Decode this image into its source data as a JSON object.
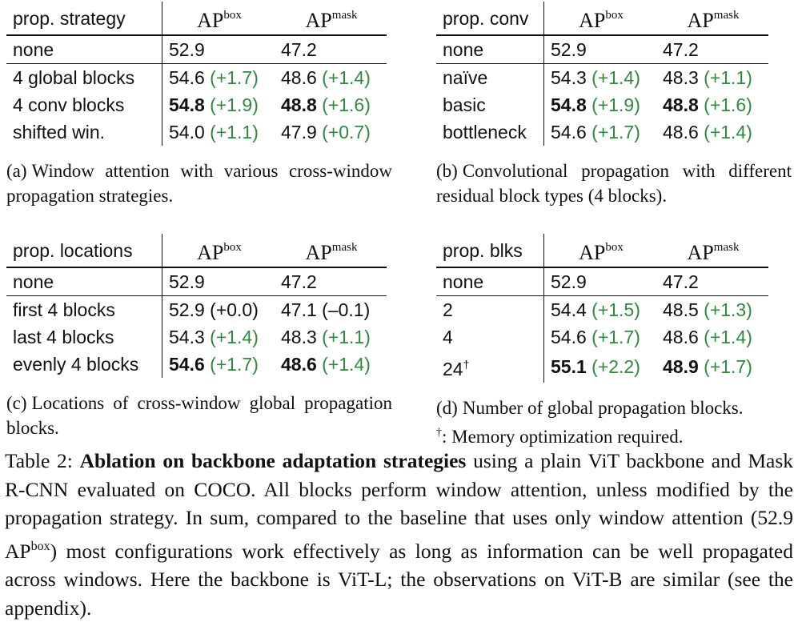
{
  "panels": {
    "a": {
      "header": {
        "label": "prop. strategy",
        "m1": "AP",
        "m1_sup": "box",
        "m2": "AP",
        "m2_sup": "mask"
      },
      "rows": [
        {
          "label": "none",
          "box": "52.9",
          "box_delta": "",
          "mask": "47.2",
          "mask_delta": ""
        },
        {
          "label": "4 global blocks",
          "box": "54.6",
          "box_delta": "(+1.7)",
          "mask": "48.6",
          "mask_delta": "(+1.4)"
        },
        {
          "label": "4 conv blocks",
          "box": "54.8",
          "box_delta": "(+1.9)",
          "mask": "48.8",
          "mask_delta": "(+1.6)"
        },
        {
          "label": "shifted win.",
          "box": "54.0",
          "box_delta": "(+1.1)",
          "mask": "47.9",
          "mask_delta": "(+0.7)"
        }
      ],
      "caption_tag": "(a)",
      "caption": "Window attention with various cross-window propagation strategies."
    },
    "b": {
      "header": {
        "label": "prop. conv",
        "m1": "AP",
        "m1_sup": "box",
        "m2": "AP",
        "m2_sup": "mask"
      },
      "rows": [
        {
          "label": "none",
          "box": "52.9",
          "box_delta": "",
          "mask": "47.2",
          "mask_delta": ""
        },
        {
          "label": "naïve",
          "box": "54.3",
          "box_delta": "(+1.4)",
          "mask": "48.3",
          "mask_delta": "(+1.1)"
        },
        {
          "label": "basic",
          "box": "54.8",
          "box_delta": "(+1.9)",
          "mask": "48.8",
          "mask_delta": "(+1.6)"
        },
        {
          "label": "bottleneck",
          "box": "54.6",
          "box_delta": "(+1.7)",
          "mask": "48.6",
          "mask_delta": "(+1.4)"
        }
      ],
      "caption_tag": "(b)",
      "caption": "Convolutional propagation with different residual block types (4 blocks)."
    },
    "c": {
      "header": {
        "label": "prop. locations",
        "m1": "AP",
        "m1_sup": "box",
        "m2": "AP",
        "m2_sup": "mask"
      },
      "rows": [
        {
          "label": "none",
          "box": "52.9",
          "box_delta": "",
          "mask": "47.2",
          "mask_delta": ""
        },
        {
          "label": "first 4 blocks",
          "box": "52.9",
          "box_delta": "(+0.0)",
          "mask": "47.1",
          "mask_delta": "(–0.1)"
        },
        {
          "label": "last 4 blocks",
          "box": "54.3",
          "box_delta": "(+1.4)",
          "mask": "48.3",
          "mask_delta": "(+1.1)"
        },
        {
          "label": "evenly 4 blocks",
          "box": "54.6",
          "box_delta": "(+1.7)",
          "mask": "48.6",
          "mask_delta": "(+1.4)"
        }
      ],
      "caption_tag": "(c)",
      "caption": "Locations of cross-window global propagation blocks."
    },
    "d": {
      "header": {
        "label": "prop. blks",
        "m1": "AP",
        "m1_sup": "box",
        "m2": "AP",
        "m2_sup": "mask"
      },
      "rows": [
        {
          "label": "none",
          "label_sup": "",
          "box": "52.9",
          "box_delta": "",
          "mask": "47.2",
          "mask_delta": ""
        },
        {
          "label": "2",
          "label_sup": "",
          "box": "54.4",
          "box_delta": "(+1.5)",
          "mask": "48.5",
          "mask_delta": "(+1.3)"
        },
        {
          "label": "4",
          "label_sup": "",
          "box": "54.6",
          "box_delta": "(+1.7)",
          "mask": "48.6",
          "mask_delta": "(+1.4)"
        },
        {
          "label": "24",
          "label_sup": "†",
          "box": "55.1",
          "box_delta": "(+2.2)",
          "mask": "48.9",
          "mask_delta": "(+1.7)"
        }
      ],
      "caption_tag": "(d)",
      "caption": "Number of global propagation blocks.",
      "note_mark": "†",
      "note": ": Memory optimization required."
    }
  },
  "colors": {
    "positive_delta": "#2e8b3e",
    "text": "#111111"
  },
  "main_caption": {
    "prefix": "Table 2:",
    "bold": "Ablation on backbone adaptation strategies",
    "text_1": "using a plain ViT backbone and Mask R-CNN evaluated on COCO. All blocks perform window attention, unless modified by the propagation strategy. In sum, compared to the baseline that uses only window attention (52.9 AP",
    "sup": "box",
    "text_2": ") most configurations work effectively as long as information can be well propagated across windows. Here the backbone is ViT-L; the observations on ViT-B are similar (see the appendix)."
  }
}
